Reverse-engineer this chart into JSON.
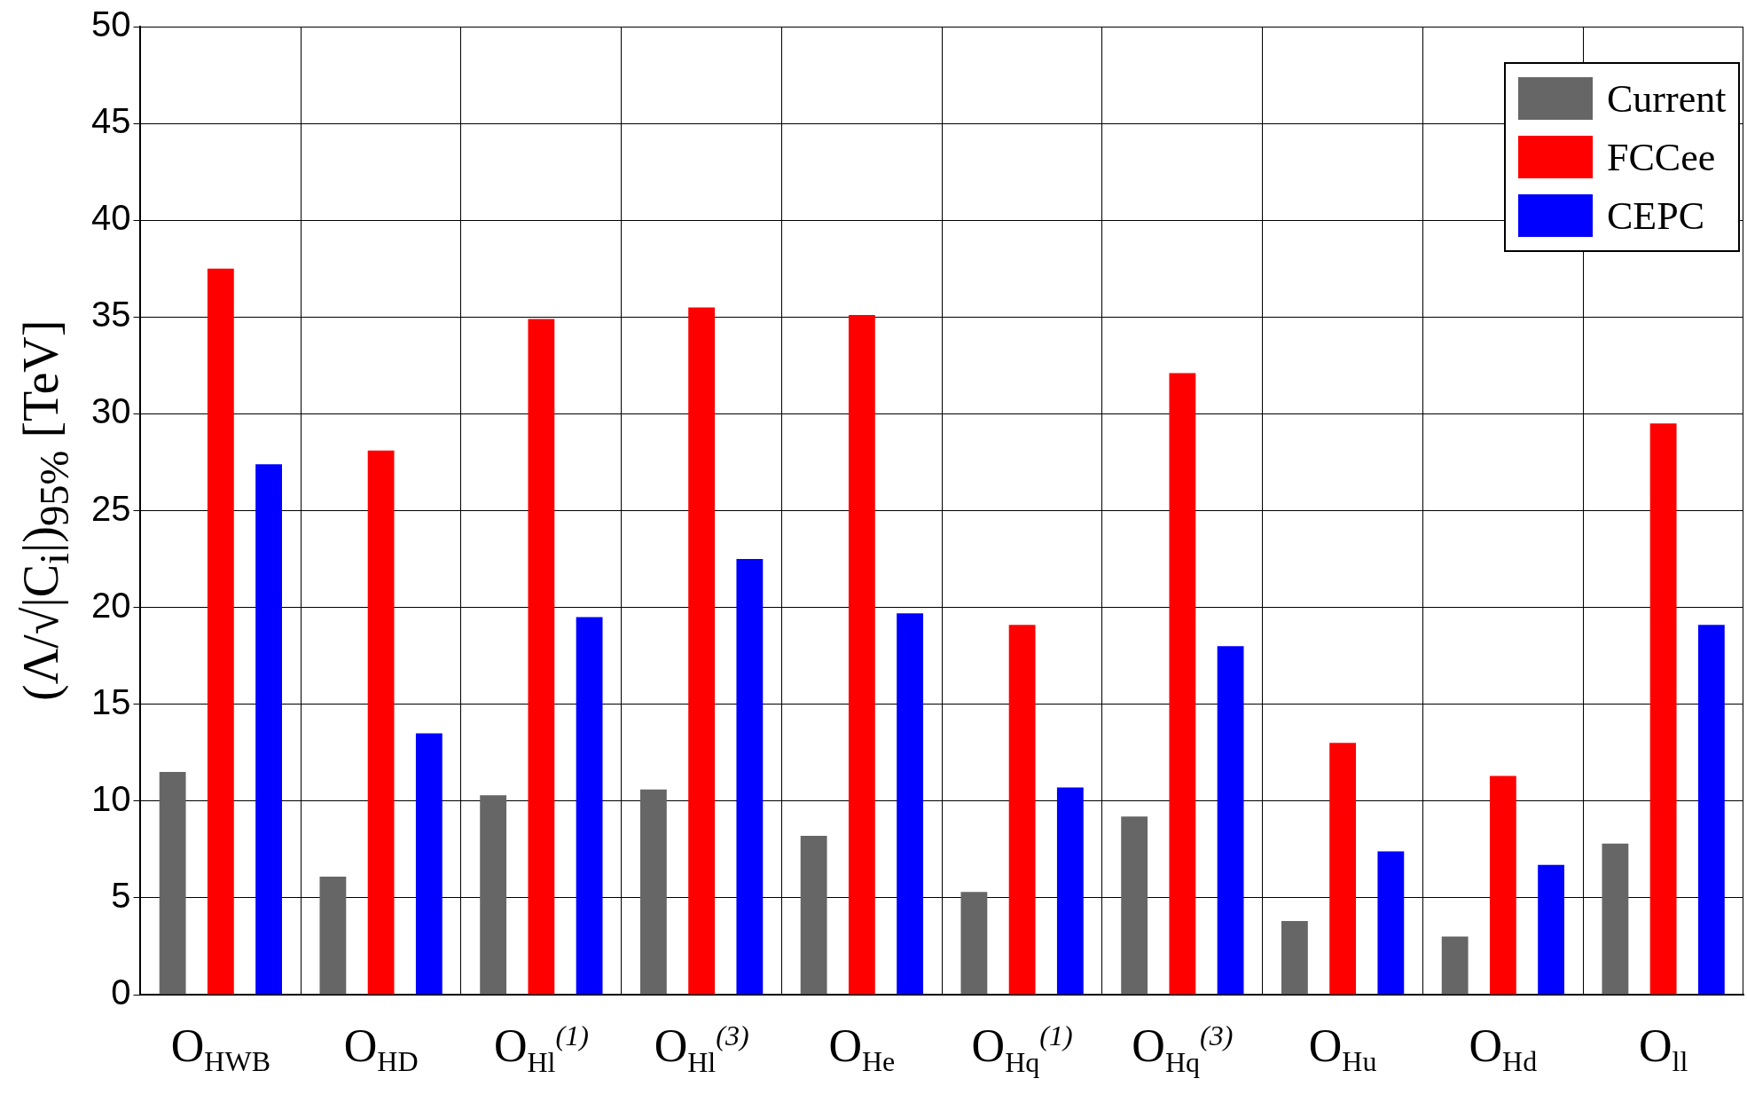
{
  "chart_data": {
    "type": "bar",
    "ylabel": "(Λ/√|C$_{i}$|)$_{95%}$ [TeV]",
    "categories": [
      "O$_{HWB}$",
      "O$_{HD}$",
      "O$_{Hl}$$^{(1)}$",
      "O$_{Hl}$$^{(3)}$",
      "O$_{He}$",
      "O$_{Hq}$$^{(1)}$",
      "O$_{Hq}$$^{(3)}$",
      "O$_{Hu}$",
      "O$_{Hd}$",
      "O$_{ll}$"
    ],
    "series": [
      {
        "name": "Current",
        "color": "#666666",
        "values": [
          11.5,
          6.1,
          10.3,
          10.6,
          8.2,
          5.3,
          9.2,
          3.8,
          3.0,
          7.8
        ]
      },
      {
        "name": "FCCee",
        "color": "#ff0000",
        "values": [
          37.5,
          28.1,
          34.9,
          35.5,
          35.1,
          19.1,
          32.1,
          13.0,
          11.3,
          29.5
        ]
      },
      {
        "name": "CEPC",
        "color": "#0000ff",
        "values": [
          27.4,
          13.5,
          19.5,
          22.5,
          19.7,
          10.7,
          18.0,
          7.4,
          6.7,
          19.1
        ]
      }
    ],
    "ylim": [
      0,
      50
    ],
    "yticks": [
      0,
      5,
      10,
      15,
      20,
      25,
      30,
      35,
      40,
      45,
      50
    ],
    "grid": true,
    "legend": "top right"
  }
}
